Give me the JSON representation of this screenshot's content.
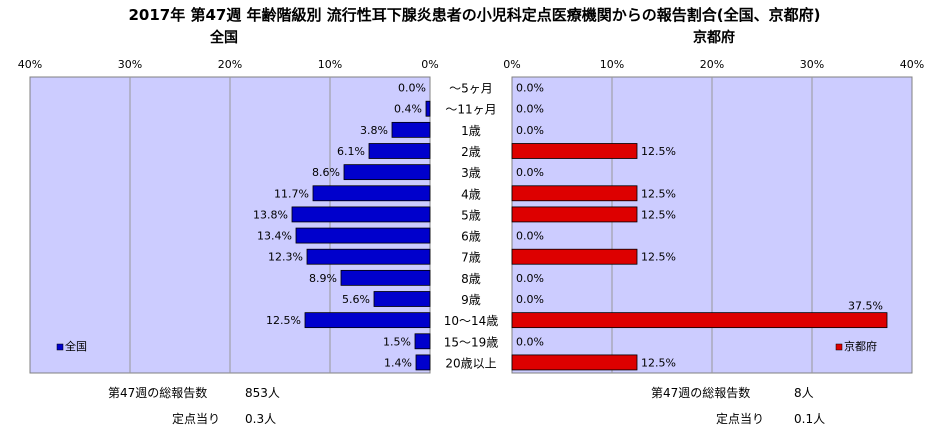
{
  "chart_data": {
    "type": "bar",
    "title": "2017年 第47週 年齢階級別 流行性耳下腺炎患者の小児科定点医療機関からの報告割合(全国、京都府)",
    "categories": [
      "～5ヶ月",
      "～11ヶ月",
      "1歳",
      "2歳",
      "3歳",
      "4歳",
      "5歳",
      "6歳",
      "7歳",
      "8歳",
      "9歳",
      "10～14歳",
      "15～19歳",
      "20歳以上"
    ],
    "panels": [
      {
        "name": "全国",
        "heading": "全国",
        "legend": "全国",
        "legend_position": "bottom-left",
        "color": "#0000cc",
        "direction": "reversed",
        "xlim": [
          0,
          40
        ],
        "ticks": [
          "40%",
          "30%",
          "20%",
          "10%",
          "0%"
        ],
        "values": [
          0.0,
          0.4,
          3.8,
          6.1,
          8.6,
          11.7,
          13.8,
          13.4,
          12.3,
          8.9,
          5.6,
          12.5,
          1.5,
          1.4
        ],
        "labels": [
          "0.0%",
          "0.4%",
          "3.8%",
          "6.1%",
          "8.6%",
          "11.7%",
          "13.8%",
          "13.4%",
          "12.3%",
          "8.9%",
          "5.6%",
          "12.5%",
          "1.5%",
          "1.4%"
        ]
      },
      {
        "name": "京都府",
        "heading": "京都府",
        "legend": "京都府",
        "legend_position": "bottom-right",
        "color": "#dd0000",
        "direction": "normal",
        "xlim": [
          0,
          40
        ],
        "ticks": [
          "0%",
          "10%",
          "20%",
          "30%",
          "40%"
        ],
        "values": [
          0.0,
          0.0,
          0.0,
          12.5,
          0.0,
          12.5,
          12.5,
          0.0,
          12.5,
          0.0,
          0.0,
          37.5,
          0.0,
          12.5
        ],
        "labels": [
          "0.0%",
          "0.0%",
          "0.0%",
          "12.5%",
          "0.0%",
          "12.5%",
          "12.5%",
          "0.0%",
          "12.5%",
          "0.0%",
          "0.0%",
          "37.5%",
          "0.0%",
          "12.5%"
        ]
      }
    ],
    "grid": true
  },
  "colors": {
    "plot_background": "#ccccff",
    "gridline": "#999999"
  },
  "footer": {
    "national_total_label": "第47週の総報告数",
    "national_total_value": "853人",
    "national_per_site_label": "定点当り",
    "national_per_site_value": "0.3人",
    "kyoto_total_label": "第47週の総報告数",
    "kyoto_total_value": "8人",
    "kyoto_per_site_label": "定点当り",
    "kyoto_per_site_value": "0.1人"
  }
}
